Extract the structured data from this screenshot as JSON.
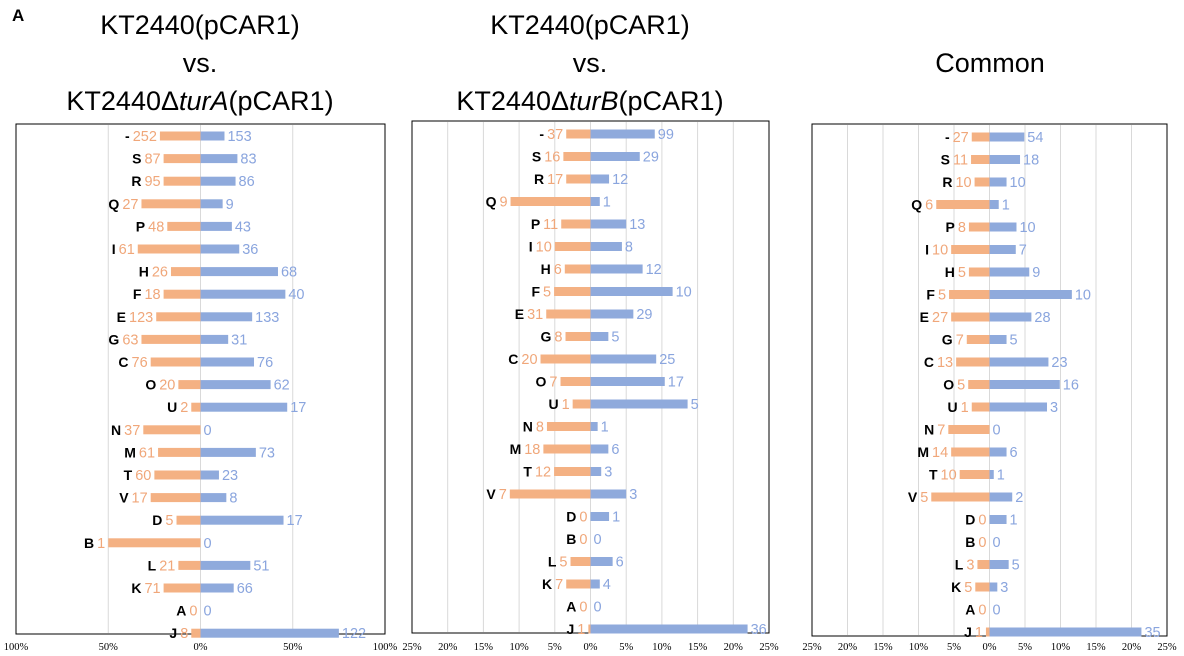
{
  "figure_label": "A",
  "colors": {
    "left_bar": "#f4b183",
    "right_bar": "#8faadc",
    "left_text": "#f0a77a",
    "right_text": "#8aa5de",
    "grid": "#d9d9d9"
  },
  "chart_data": [
    {
      "type": "bar",
      "orientation": "horizontal-diverging",
      "title_lines": [
        "KT2440(pCAR1)",
        "vs.",
        "KT2440ΔturA(pCAR1)"
      ],
      "x_unit": "percent",
      "xlim": [
        -100,
        100
      ],
      "x_ticks": [
        -100,
        -50,
        0,
        50,
        100
      ],
      "x_tick_labels": [
        "100%",
        "50%",
        "0%",
        "50%",
        "100%"
      ],
      "grid": true,
      "categories": [
        "-",
        "S",
        "R",
        "Q",
        "P",
        "I",
        "H",
        "F",
        "E",
        "G",
        "C",
        "O",
        "U",
        "N",
        "M",
        "T",
        "V",
        "D",
        "B",
        "L",
        "K",
        "A",
        "J"
      ],
      "series": [
        {
          "side": "left",
          "percent": [
            22,
            20,
            20,
            32,
            18,
            34,
            16,
            20,
            24,
            32,
            27,
            12,
            5,
            31,
            23,
            25,
            27,
            13,
            50,
            12,
            20,
            0,
            5
          ],
          "labels": [
            "252",
            "87",
            "95",
            "27",
            "48",
            "61",
            "26",
            "18",
            "123",
            "63",
            "76",
            "20",
            "2",
            "37",
            "61",
            "60",
            "17",
            "5",
            "1",
            "21",
            "71",
            "0",
            "8"
          ]
        },
        {
          "side": "right",
          "percent": [
            13,
            20,
            19,
            12,
            17,
            21,
            42,
            46,
            28,
            15,
            29,
            38,
            47,
            0,
            30,
            10,
            14,
            45,
            0,
            27,
            18,
            0,
            75
          ],
          "labels": [
            "153",
            "83",
            "86",
            "9",
            "43",
            "36",
            "68",
            "40",
            "133",
            "31",
            "76",
            "62",
            "17",
            "0",
            "73",
            "23",
            "8",
            "17",
            "0",
            "51",
            "66",
            "0",
            "122"
          ]
        }
      ]
    },
    {
      "type": "bar",
      "orientation": "horizontal-diverging",
      "title_lines": [
        "KT2440(pCAR1)",
        "vs.",
        "KT2440ΔturB(pCAR1)"
      ],
      "x_unit": "percent",
      "xlim": [
        -25,
        25
      ],
      "x_ticks": [
        -25,
        -20,
        -15,
        -10,
        -5,
        0,
        5,
        10,
        15,
        20,
        25
      ],
      "x_tick_labels": [
        "25%",
        "20%",
        "15%",
        "10%",
        "5%",
        "0%",
        "5%",
        "10%",
        "15%",
        "20%",
        "25%"
      ],
      "grid": true,
      "categories": [
        "-",
        "S",
        "R",
        "Q",
        "P",
        "I",
        "H",
        "F",
        "E",
        "G",
        "C",
        "O",
        "U",
        "N",
        "M",
        "T",
        "V",
        "D",
        "B",
        "L",
        "K",
        "A",
        "J"
      ],
      "series": [
        {
          "side": "left",
          "percent": [
            3.4,
            3.8,
            3.4,
            11.2,
            4.1,
            5.0,
            3.6,
            5.1,
            6.2,
            3.5,
            7.0,
            4.2,
            2.5,
            6.1,
            6.6,
            5.1,
            11.3,
            0,
            0,
            2.8,
            3.4,
            0,
            0.3
          ],
          "labels": [
            "37",
            "16",
            "17",
            "9",
            "11",
            "10",
            "6",
            "5",
            "31",
            "8",
            "20",
            "7",
            "1",
            "8",
            "18",
            "12",
            "7",
            "0",
            "0",
            "5",
            "7",
            "0",
            "1"
          ]
        },
        {
          "side": "right",
          "percent": [
            9.0,
            6.9,
            2.6,
            1.3,
            5.0,
            4.4,
            7.3,
            11.5,
            6.0,
            2.5,
            9.2,
            10.4,
            13.6,
            1.0,
            2.5,
            1.5,
            5.0,
            2.6,
            0,
            3.1,
            1.3,
            0,
            22.0
          ],
          "labels": [
            "99",
            "29",
            "12",
            "1",
            "13",
            "8",
            "12",
            "10",
            "29",
            "5",
            "25",
            "17",
            "5",
            "1",
            "6",
            "3",
            "3",
            "1",
            "0",
            "6",
            "4",
            "0",
            "36"
          ]
        }
      ]
    },
    {
      "type": "bar",
      "orientation": "horizontal-diverging",
      "title_lines": [
        "Common"
      ],
      "x_unit": "percent",
      "xlim": [
        -25,
        25
      ],
      "x_ticks": [
        -25,
        -20,
        -15,
        -10,
        -5,
        0,
        5,
        10,
        15,
        20,
        25
      ],
      "x_tick_labels": [
        "25%",
        "20%",
        "15%",
        "10%",
        "5%",
        "0%",
        "5%",
        "10%",
        "15%",
        "20%",
        "25%"
      ],
      "grid": true,
      "categories": [
        "-",
        "S",
        "R",
        "Q",
        "P",
        "I",
        "H",
        "F",
        "E",
        "G",
        "C",
        "O",
        "U",
        "N",
        "M",
        "T",
        "V",
        "D",
        "B",
        "L",
        "K",
        "A",
        "J"
      ],
      "series": [
        {
          "side": "left",
          "percent": [
            2.5,
            2.6,
            2.1,
            7.5,
            2.9,
            5.4,
            2.9,
            5.7,
            5.4,
            3.2,
            4.7,
            3.0,
            2.5,
            5.8,
            5.4,
            4.2,
            8.2,
            0,
            0,
            1.7,
            2.0,
            0,
            0.5
          ],
          "labels": [
            "27",
            "11",
            "10",
            "6",
            "8",
            "10",
            "5",
            "5",
            "27",
            "7",
            "13",
            "5",
            "1",
            "7",
            "14",
            "10",
            "5",
            "0",
            "0",
            "3",
            "5",
            "0",
            "1"
          ]
        },
        {
          "side": "right",
          "percent": [
            4.9,
            4.3,
            2.4,
            1.3,
            3.8,
            3.7,
            5.6,
            11.6,
            5.9,
            2.4,
            8.3,
            9.9,
            8.1,
            0,
            2.4,
            0.6,
            3.2,
            2.4,
            0,
            2.7,
            1.1,
            0,
            21.4
          ],
          "labels": [
            "54",
            "18",
            "10",
            "1",
            "10",
            "7",
            "9",
            "10",
            "28",
            "5",
            "23",
            "16",
            "3",
            "0",
            "6",
            "1",
            "2",
            "1",
            "0",
            "5",
            "3",
            "0",
            "35"
          ]
        }
      ]
    }
  ]
}
